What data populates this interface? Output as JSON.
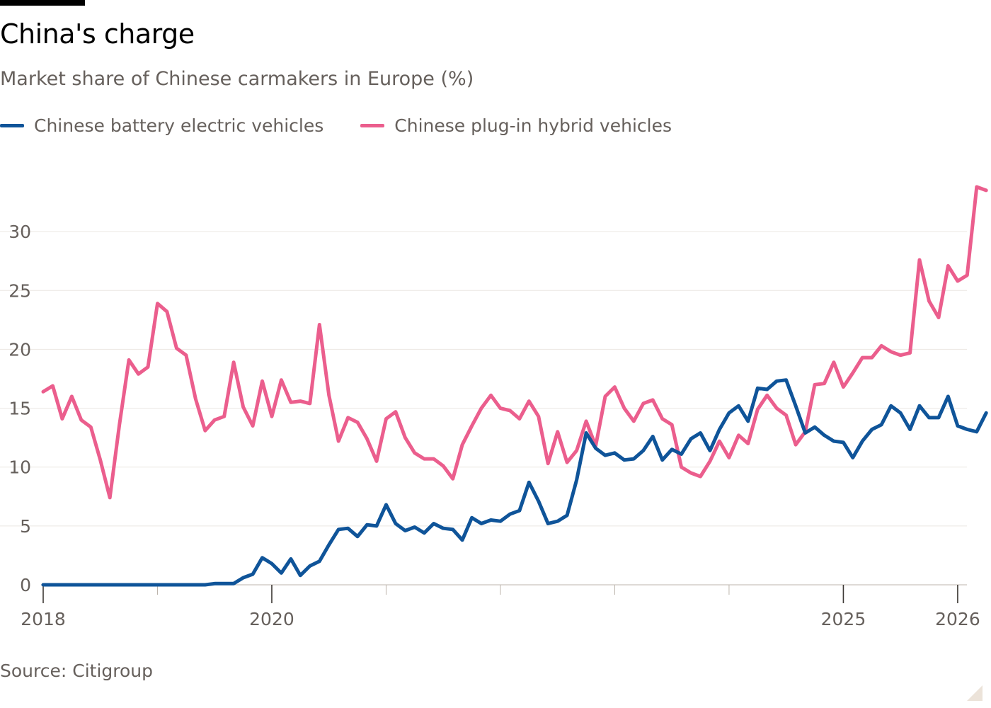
{
  "chart_data": {
    "type": "line",
    "title": "China's charge",
    "subtitle": "Market share of Chinese carmakers in Europe (%)",
    "source": "Source: Citigroup",
    "ylim": [
      0,
      35
    ],
    "yticks": [
      0,
      5,
      10,
      15,
      20,
      25,
      30
    ],
    "xlim": [
      2018.0,
      2026.05
    ],
    "xticks": [
      {
        "value": 2018,
        "label": "2018"
      },
      {
        "value": 2020,
        "label": "2020"
      },
      {
        "value": 2025,
        "label": "2025"
      },
      {
        "value": 2026,
        "label": "2026"
      }
    ],
    "minor_xticks": [
      2019,
      2021,
      2022,
      2023,
      2024
    ],
    "grid": true,
    "legend_position": "top-left",
    "series": [
      {
        "name": "Chinese battery electric vehicles",
        "color": "#0f5499",
        "x_start": 2018.0,
        "x_step": 0.08333,
        "values": [
          0,
          0,
          0,
          0,
          0,
          0,
          0,
          0,
          0,
          0,
          0,
          0,
          0,
          0,
          0,
          0,
          0,
          0,
          0.1,
          0.1,
          0.1,
          0.6,
          0.9,
          2.3,
          1.8,
          1.0,
          2.2,
          0.8,
          1.6,
          2.0,
          3.4,
          4.7,
          4.8,
          4.1,
          5.1,
          5.0,
          6.8,
          5.2,
          4.6,
          4.9,
          4.4,
          5.2,
          4.8,
          4.7,
          3.8,
          5.7,
          5.2,
          5.5,
          5.4,
          6.0,
          6.3,
          8.7,
          7.1,
          5.2,
          5.4,
          5.9,
          8.9,
          12.9,
          11.6,
          11.0,
          11.2,
          10.6,
          10.7,
          11.4,
          12.6,
          10.6,
          11.5,
          11.1,
          12.4,
          12.9,
          11.4,
          13.2,
          14.6,
          15.2,
          13.9,
          16.7,
          16.6,
          17.3,
          17.4,
          15.2,
          12.9,
          13.4,
          12.7,
          12.2,
          12.1,
          10.8,
          12.2,
          13.2,
          13.6,
          15.2,
          14.6,
          13.2,
          15.2,
          14.2,
          14.2,
          16.0,
          13.5,
          13.2,
          13.0,
          14.6
        ]
      },
      {
        "name": "Chinese plug-in hybrid vehicles",
        "color": "#eb5e8d",
        "x_start": 2018.0,
        "x_step": 0.08333,
        "values": [
          16.4,
          16.9,
          14.1,
          16.0,
          14.0,
          13.4,
          10.6,
          7.4,
          13.6,
          19.1,
          17.9,
          18.5,
          23.9,
          23.2,
          20.1,
          19.5,
          15.8,
          13.1,
          14.0,
          14.3,
          18.9,
          15.1,
          13.5,
          17.3,
          14.3,
          17.4,
          15.5,
          15.6,
          15.4,
          22.1,
          16.1,
          12.2,
          14.2,
          13.8,
          12.4,
          10.5,
          14.1,
          14.7,
          12.5,
          11.2,
          10.7,
          10.7,
          10.1,
          9.0,
          11.9,
          13.5,
          15.0,
          16.1,
          15.0,
          14.8,
          14.1,
          15.6,
          14.3,
          10.3,
          13.0,
          10.4,
          11.4,
          13.9,
          11.8,
          16.0,
          16.8,
          15.0,
          13.9,
          15.4,
          15.7,
          14.1,
          13.6,
          10.0,
          9.5,
          9.2,
          10.5,
          12.2,
          10.8,
          12.7,
          12.0,
          14.9,
          16.1,
          15.0,
          14.4,
          11.9,
          13.0,
          17.0,
          17.1,
          18.9,
          16.8,
          18.0,
          19.3,
          19.3,
          20.3,
          19.8,
          19.5,
          19.7,
          27.6,
          24.1,
          22.7,
          27.1,
          25.8,
          26.3,
          33.8,
          33.5
        ]
      }
    ]
  }
}
